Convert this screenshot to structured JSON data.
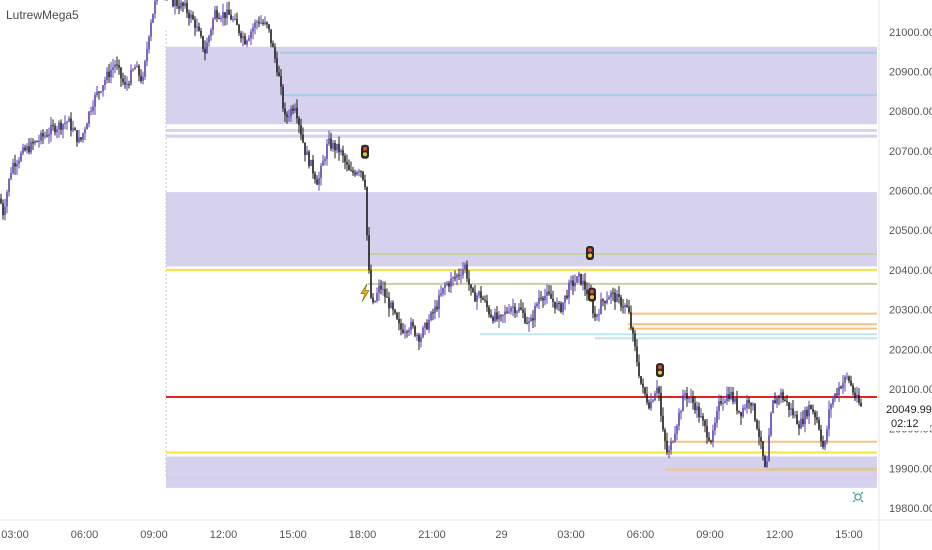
{
  "indicator_label": "LutrewMega5",
  "colors": {
    "zone": "#d6d2ee",
    "zone_line": "#a9cbea",
    "line_yellow": "#f7e23a",
    "line_red": "#e3241b",
    "line_orange": "#f6c27e",
    "line_olive": "#c9cfa0",
    "line_cyan": "#bfe6f2",
    "candle_up": "#5b3fb0",
    "candle_down": "#1a1a1a",
    "marker_stop": "#2a2a2a",
    "marker_flash": "#e6b800",
    "price_label_bg": "#ffffff"
  },
  "chart_data": {
    "type": "candlestick",
    "instrument": "",
    "ylim": [
      19770,
      21080
    ],
    "y_ticks": [
      "21000.00",
      "20900.00",
      "20800.00",
      "20700.00",
      "20600.00",
      "20500.00",
      "20400.00",
      "20300.00",
      "20200.00",
      "20100.00",
      "20000.00",
      "19900.00",
      "19800.00"
    ],
    "x_ticks": [
      "03:00",
      "06:00",
      "09:00",
      "12:00",
      "15:00",
      "18:00",
      "21:00",
      "29",
      "03:00",
      "06:00",
      "09:00",
      "12:00",
      "15:00"
    ],
    "last_price": "20049.99",
    "countdown": "02:12",
    "price_path": [
      [
        0,
        20580
      ],
      [
        3,
        20545
      ],
      [
        12,
        20665
      ],
      [
        25,
        20700
      ],
      [
        40,
        20730
      ],
      [
        55,
        20760
      ],
      [
        68,
        20775
      ],
      [
        80,
        20720
      ],
      [
        92,
        20820
      ],
      [
        105,
        20880
      ],
      [
        115,
        20920
      ],
      [
        125,
        20860
      ],
      [
        135,
        20910
      ],
      [
        143,
        20875
      ],
      [
        150,
        21020
      ],
      [
        160,
        21120
      ],
      [
        170,
        21080
      ],
      [
        185,
        21060
      ],
      [
        195,
        21020
      ],
      [
        205,
        20950
      ],
      [
        215,
        21050
      ],
      [
        230,
        21040
      ],
      [
        245,
        20980
      ],
      [
        258,
        21030
      ],
      [
        268,
        21010
      ],
      [
        278,
        20900
      ],
      [
        285,
        20780
      ],
      [
        295,
        20820
      ],
      [
        305,
        20700
      ],
      [
        318,
        20620
      ],
      [
        328,
        20720
      ],
      [
        340,
        20700
      ],
      [
        350,
        20640
      ],
      [
        360,
        20660
      ],
      [
        365,
        20620
      ],
      [
        368,
        20420
      ],
      [
        372,
        20300
      ],
      [
        380,
        20360
      ],
      [
        390,
        20310
      ],
      [
        400,
        20250
      ],
      [
        410,
        20260
      ],
      [
        420,
        20230
      ],
      [
        435,
        20300
      ],
      [
        445,
        20360
      ],
      [
        455,
        20380
      ],
      [
        465,
        20410
      ],
      [
        472,
        20330
      ],
      [
        480,
        20340
      ],
      [
        490,
        20290
      ],
      [
        500,
        20270
      ],
      [
        510,
        20310
      ],
      [
        520,
        20300
      ],
      [
        530,
        20260
      ],
      [
        540,
        20340
      ],
      [
        550,
        20330
      ],
      [
        560,
        20300
      ],
      [
        570,
        20360
      ],
      [
        580,
        20380
      ],
      [
        590,
        20330
      ],
      [
        595,
        20280
      ],
      [
        602,
        20320
      ],
      [
        610,
        20340
      ],
      [
        620,
        20320
      ],
      [
        628,
        20300
      ],
      [
        635,
        20200
      ],
      [
        642,
        20100
      ],
      [
        650,
        20060
      ],
      [
        658,
        20120
      ],
      [
        662,
        20000
      ],
      [
        668,
        19930
      ],
      [
        675,
        20000
      ],
      [
        685,
        20090
      ],
      [
        695,
        20060
      ],
      [
        705,
        20000
      ],
      [
        712,
        19970
      ],
      [
        720,
        20070
      ],
      [
        730,
        20090
      ],
      [
        740,
        20040
      ],
      [
        750,
        20080
      ],
      [
        758,
        20000
      ],
      [
        766,
        19880
      ],
      [
        772,
        20060
      ],
      [
        780,
        20090
      ],
      [
        790,
        20050
      ],
      [
        800,
        20010
      ],
      [
        810,
        20060
      ],
      [
        818,
        20020
      ],
      [
        824,
        19940
      ],
      [
        830,
        20060
      ],
      [
        840,
        20110
      ],
      [
        848,
        20130
      ],
      [
        855,
        20080
      ],
      [
        862,
        20049.99
      ]
    ],
    "price_zones": [
      {
        "from": 20767,
        "to": 20962
      },
      {
        "from": 20748,
        "to": 20755
      },
      {
        "from": 20733,
        "to": 20741
      },
      {
        "from": 20409,
        "to": 20596
      },
      {
        "from": 19851,
        "to": 19930
      }
    ],
    "horizontal_levels": [
      {
        "price": 20947,
        "color_key": "zone_line",
        "extent": "full"
      },
      {
        "price": 20840,
        "color_key": "zone_line",
        "extent": "full"
      },
      {
        "price": 20400,
        "color_key": "line_yellow",
        "extent": "full"
      },
      {
        "price": 20080,
        "color_key": "line_red",
        "extent": "full"
      },
      {
        "price": 19940,
        "color_key": "line_yellow",
        "extent": "full"
      },
      {
        "price": 20440,
        "color_key": "line_olive",
        "extent": "partial"
      },
      {
        "price": 20365,
        "color_key": "line_olive",
        "extent": "partial"
      },
      {
        "price": 20290,
        "color_key": "line_orange",
        "extent": "partial"
      },
      {
        "price": 20263,
        "color_key": "line_orange",
        "extent": "partial"
      },
      {
        "price": 20252,
        "color_key": "line_orange",
        "extent": "partial"
      },
      {
        "price": 20238,
        "color_key": "line_cyan",
        "extent": "partial"
      },
      {
        "price": 19967,
        "color_key": "line_orange",
        "extent": "partial"
      },
      {
        "price": 19897,
        "color_key": "line_orange",
        "extent": "partial"
      },
      {
        "price": 19899,
        "color_key": "line_olive",
        "extent": "partial"
      }
    ],
    "markers": [
      {
        "type": "stop-icon",
        "price": 20680
      },
      {
        "type": "stop-icon",
        "price": 20425
      },
      {
        "type": "stop-icon",
        "price": 20320
      },
      {
        "type": "stop-icon",
        "price": 20130
      },
      {
        "type": "flash-icon",
        "price": 20320
      }
    ],
    "grid": false,
    "legend": "none"
  }
}
